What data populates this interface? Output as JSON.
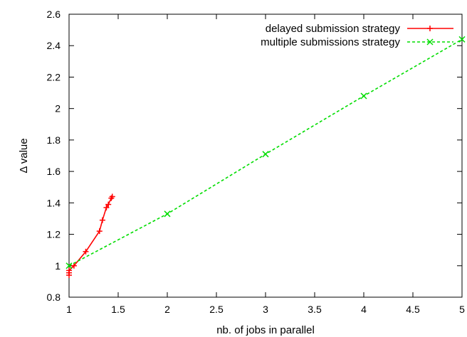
{
  "chart_data": {
    "type": "line",
    "title": "",
    "xlabel": "nb. of jobs in parallel",
    "ylabel": "Δ value",
    "xlim": [
      1,
      5
    ],
    "ylim": [
      0.8,
      2.6
    ],
    "xticks": [
      "1",
      "1.5",
      "2",
      "2.5",
      "3",
      "3.5",
      "4",
      "4.5",
      "5"
    ],
    "yticks": [
      "0.8",
      "1",
      "1.2",
      "1.4",
      "1.6",
      "1.8",
      "2",
      "2.2",
      "2.4",
      "2.6"
    ],
    "grid": false,
    "legend_position": "top-right",
    "series": [
      {
        "name": "delayed submission strategy",
        "color": "#ff0000",
        "line_style": "solid",
        "marker": "plus",
        "points": [
          {
            "x": 1.0,
            "y": 0.94
          },
          {
            "x": 1.0,
            "y": 0.955
          },
          {
            "x": 1.0,
            "y": 0.97
          },
          {
            "x": 1.05,
            "y": 1.0
          },
          {
            "x": 1.17,
            "y": 1.09
          },
          {
            "x": 1.31,
            "y": 1.22
          },
          {
            "x": 1.34,
            "y": 1.29
          },
          {
            "x": 1.38,
            "y": 1.37
          },
          {
            "x": 1.4,
            "y": 1.39
          },
          {
            "x": 1.43,
            "y": 1.43
          },
          {
            "x": 1.44,
            "y": 1.44
          }
        ]
      },
      {
        "name": "multiple submissions strategy",
        "color": "#00dd00",
        "line_style": "dashed",
        "marker": "cross",
        "points": [
          {
            "x": 1,
            "y": 1.0
          },
          {
            "x": 2,
            "y": 1.33
          },
          {
            "x": 3,
            "y": 1.71
          },
          {
            "x": 4,
            "y": 2.08
          },
          {
            "x": 5,
            "y": 2.44
          }
        ]
      }
    ]
  }
}
